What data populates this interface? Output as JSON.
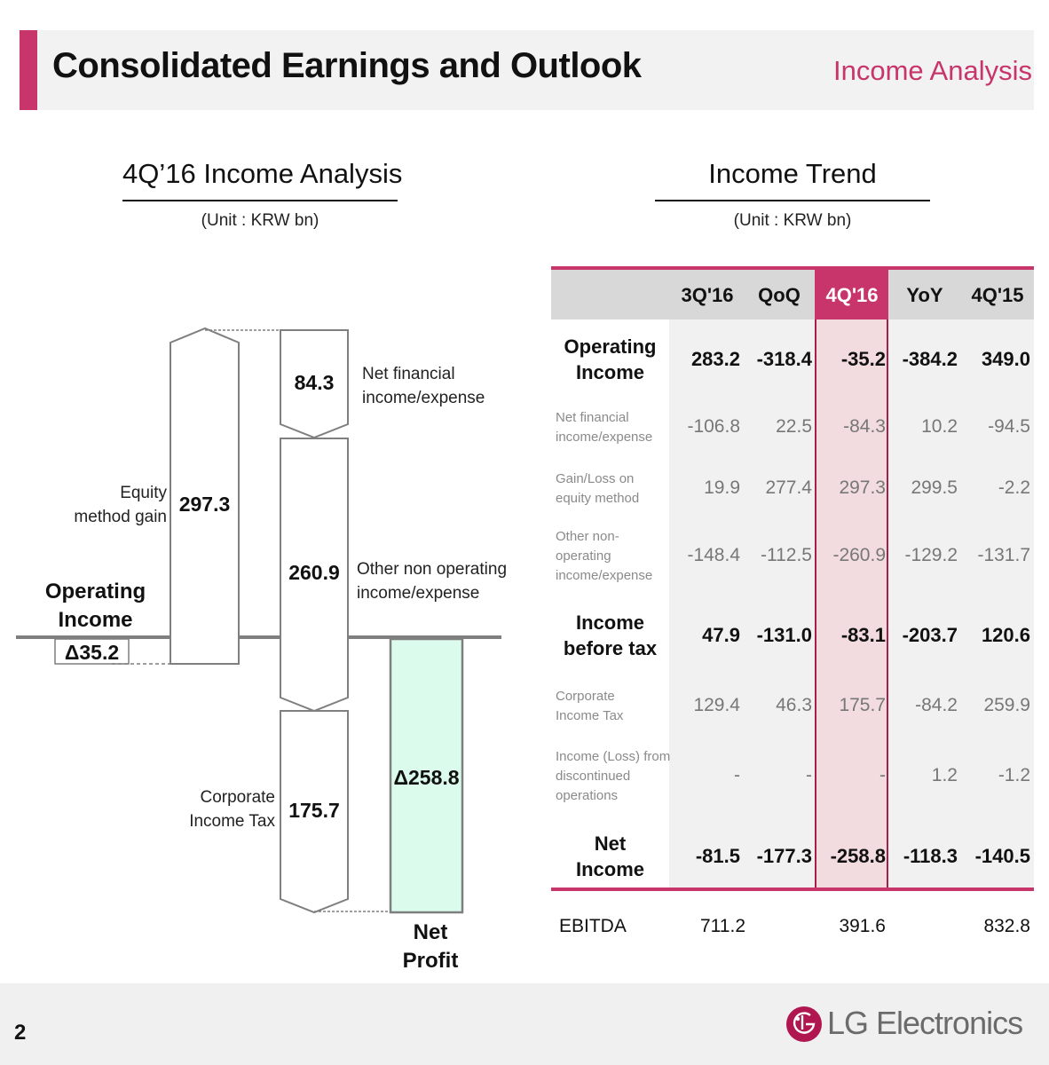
{
  "header": {
    "title": "Consolidated Earnings and Outlook",
    "subtitle": "Income Analysis"
  },
  "left": {
    "title": "4Q’16 Income Analysis",
    "unit": "(Unit : KRW bn)",
    "operating_income_label": [
      "Operating",
      "Income"
    ],
    "operating_income_value": "Δ35.2",
    "equity_label": [
      "Equity",
      "method gain"
    ],
    "equity_value": "297.3",
    "net_financial_value": "84.3",
    "net_financial_label": [
      "Net financial",
      "income/expense"
    ],
    "other_nonop_value": "260.9",
    "other_nonop_label": [
      "Other non operating",
      "income/expense"
    ],
    "corp_tax_label": [
      "Corporate",
      "Income Tax"
    ],
    "corp_tax_value": "175.7",
    "net_profit_value": "Δ258.8",
    "net_profit_label": [
      "Net",
      "Profit"
    ],
    "colors": {
      "net_profit_fill": "#dbfbec",
      "box_stroke": "#7f7f7f"
    }
  },
  "right": {
    "title": "Income Trend",
    "unit": "(Unit : KRW bn)",
    "columns": [
      "3Q'16",
      "QoQ",
      "4Q'16",
      "YoY",
      "4Q'15"
    ],
    "rows": [
      {
        "label": [
          "Operating",
          "Income"
        ],
        "bold": true,
        "values": [
          "283.2",
          "-318.4",
          "-35.2",
          "-384.2",
          "349.0"
        ]
      },
      {
        "label": [
          "Net financial",
          "income/expense"
        ],
        "bold": false,
        "values": [
          "-106.8",
          "22.5",
          "-84.3",
          "10.2",
          "-94.5"
        ]
      },
      {
        "label": [
          "Gain/Loss on",
          "equity method"
        ],
        "bold": false,
        "values": [
          "19.9",
          "277.4",
          "297.3",
          "299.5",
          "-2.2"
        ]
      },
      {
        "label": [
          "Other non-",
          "operating",
          "income/expense"
        ],
        "bold": false,
        "values": [
          "-148.4",
          "-112.5",
          "-260.9",
          "-129.2",
          "-131.7"
        ]
      },
      {
        "label": [
          "Income",
          "before tax"
        ],
        "bold": true,
        "values": [
          "47.9",
          "-131.0",
          "-83.1",
          "-203.7",
          "120.6"
        ]
      },
      {
        "label": [
          "Corporate",
          "Income Tax"
        ],
        "bold": false,
        "values": [
          "129.4",
          "46.3",
          "175.7",
          "-84.2",
          "259.9"
        ]
      },
      {
        "label": [
          "Income (Loss) from",
          "discontinued",
          "operations"
        ],
        "bold": false,
        "values": [
          "-",
          "-",
          "-",
          "1.2",
          "-1.2"
        ]
      },
      {
        "label": [
          "Net",
          "Income"
        ],
        "bold": true,
        "values": [
          "-81.5",
          "-177.3",
          "-258.8",
          "-118.3",
          "-140.5"
        ]
      }
    ],
    "ebitda": {
      "label": "EBITDA",
      "values": [
        "711.2",
        "391.6",
        "832.8"
      ]
    },
    "colors": {
      "accent": "#c8356a",
      "highlight": "#f2dcdf",
      "header_bg": "#d8d8d8"
    }
  },
  "footer": {
    "page": "2",
    "brand": "LG Electronics",
    "logo_icon": "lg-logo-icon"
  }
}
